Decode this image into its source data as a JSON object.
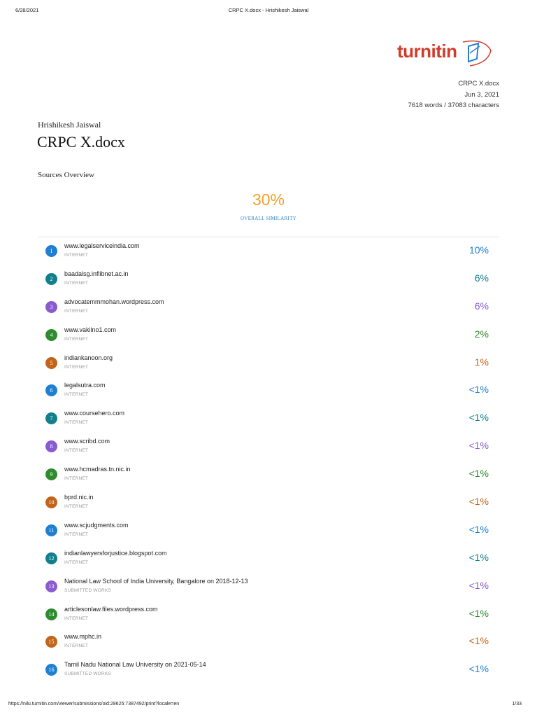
{
  "print_header": {
    "date": "6/28/2021",
    "title": "CRPC X.docx - Hrishikesh Jaiswal"
  },
  "logo": {
    "text": "turnitin",
    "color": "#d23a2a"
  },
  "meta": {
    "filename": "CRPC X.docx",
    "date": "Jun 3, 2021",
    "counts": "7618 words / 37083 characters"
  },
  "author": "Hrishikesh Jaiswal",
  "doc_title": "CRPC X.docx",
  "section_title": "Sources Overview",
  "overall": {
    "value": "30%",
    "label": "OVERALL SIMILARITY",
    "value_color": "#f0a22a",
    "label_color": "#2980c9"
  },
  "colors": {
    "blue": "#1f7fd1",
    "teal": "#127f8c",
    "purple": "#8a5bd0",
    "green": "#2e8b2e",
    "orange": "#c2651b"
  },
  "sources": [
    {
      "num": "1",
      "name": "www.legalserviceindia.com",
      "type": "INTERNET",
      "pct": "10%",
      "color": "#1f7fd1"
    },
    {
      "num": "2",
      "name": "baadalsg.inflibnet.ac.in",
      "type": "INTERNET",
      "pct": "6%",
      "color": "#127f8c"
    },
    {
      "num": "3",
      "name": "advocatemmmohan.wordpress.com",
      "type": "INTERNET",
      "pct": "6%",
      "color": "#8a5bd0"
    },
    {
      "num": "4",
      "name": "www.vakilno1.com",
      "type": "INTERNET",
      "pct": "2%",
      "color": "#2e8b2e"
    },
    {
      "num": "5",
      "name": "indiankanoon.org",
      "type": "INTERNET",
      "pct": "1%",
      "color": "#c2651b"
    },
    {
      "num": "6",
      "name": "legalsutra.com",
      "type": "INTERNET",
      "pct": "<1%",
      "color": "#1f7fd1"
    },
    {
      "num": "7",
      "name": "www.coursehero.com",
      "type": "INTERNET",
      "pct": "<1%",
      "color": "#127f8c"
    },
    {
      "num": "8",
      "name": "www.scribd.com",
      "type": "INTERNET",
      "pct": "<1%",
      "color": "#8a5bd0"
    },
    {
      "num": "9",
      "name": "www.hcmadras.tn.nic.in",
      "type": "INTERNET",
      "pct": "<1%",
      "color": "#2e8b2e"
    },
    {
      "num": "10",
      "name": "bprd.nic.in",
      "type": "INTERNET",
      "pct": "<1%",
      "color": "#c2651b"
    },
    {
      "num": "11",
      "name": "www.scjudgments.com",
      "type": "INTERNET",
      "pct": "<1%",
      "color": "#1f7fd1"
    },
    {
      "num": "12",
      "name": "indianlawyersforjustice.blogspot.com",
      "type": "INTERNET",
      "pct": "<1%",
      "color": "#127f8c"
    },
    {
      "num": "13",
      "name": "National Law School of India University, Bangalore on 2018-12-13",
      "type": "SUBMITTED WORKS",
      "pct": "<1%",
      "color": "#8a5bd0"
    },
    {
      "num": "14",
      "name": "articlesonlaw.files.wordpress.com",
      "type": "INTERNET",
      "pct": "<1%",
      "color": "#2e8b2e"
    },
    {
      "num": "15",
      "name": "www.mphc.in",
      "type": "INTERNET",
      "pct": "<1%",
      "color": "#c2651b"
    },
    {
      "num": "16",
      "name": "Tamil Nadu National Law University on 2021-05-14",
      "type": "SUBMITTED WORKS",
      "pct": "<1%",
      "color": "#1f7fd1"
    }
  ],
  "print_footer": {
    "url": "https://nilu.turnitin.com/viewer/submissions/oid:28625:7387492/print?locale=en",
    "page": "1/33"
  }
}
